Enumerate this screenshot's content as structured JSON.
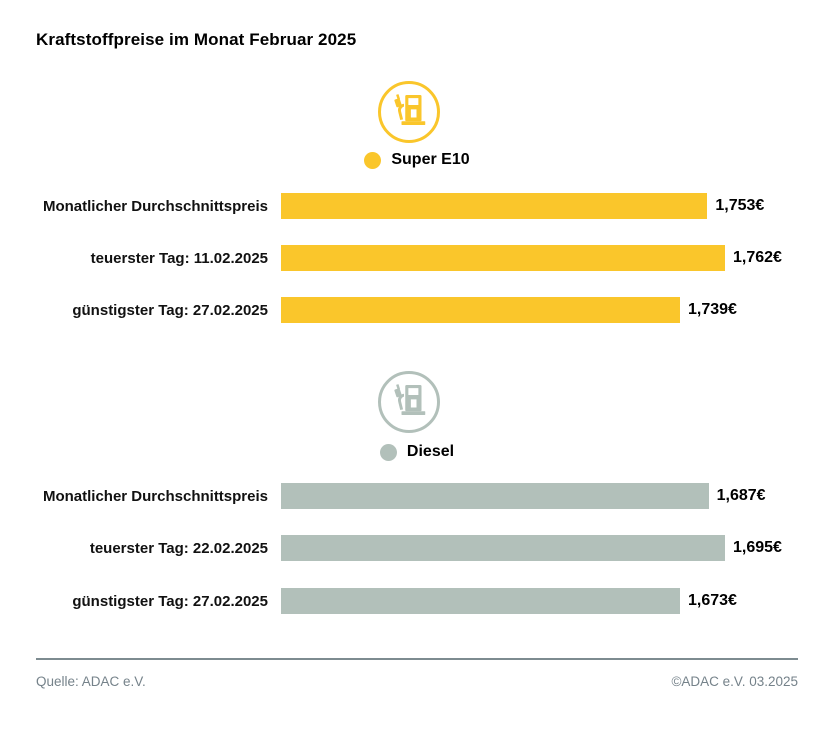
{
  "title": "Kraftstoffpreise im Monat Februar 2025",
  "colors": {
    "super_e10": "#FAC62B",
    "diesel": "#B2C0BA",
    "footer_text": "#75828A",
    "divider": "#7D8B90"
  },
  "chart_data": {
    "type": "bar",
    "title": "Kraftstoffpreise im Monat Februar 2025",
    "orientation": "horizontal",
    "value_unit": "€",
    "sections": [
      {
        "name": "Super E10",
        "icon": "fuel-pump-icon",
        "color": "#FAC62B",
        "rows": [
          {
            "label": "Monatlicher Durchschnittspreis",
            "value": 1.753,
            "value_label": "1,753€"
          },
          {
            "label": "teuerster Tag: 11.02.2025",
            "value": 1.762,
            "value_label": "1,762€"
          },
          {
            "label": "günstigster Tag: 27.02.2025",
            "value": 1.739,
            "value_label": "1,739€"
          }
        ]
      },
      {
        "name": "Diesel",
        "icon": "fuel-pump-icon",
        "color": "#B2C0BA",
        "rows": [
          {
            "label": "Monatlicher Durchschnittspreis",
            "value": 1.687,
            "value_label": "1,687€"
          },
          {
            "label": "teuerster Tag: 22.02.2025",
            "value": 1.695,
            "value_label": "1,695€"
          },
          {
            "label": "günstigster Tag: 27.02.2025",
            "value": 1.673,
            "value_label": "1,673€"
          }
        ]
      }
    ]
  },
  "footer": {
    "source": "Quelle: ADAC e.V.",
    "copyright": "©ADAC e.V. 03.2025"
  }
}
